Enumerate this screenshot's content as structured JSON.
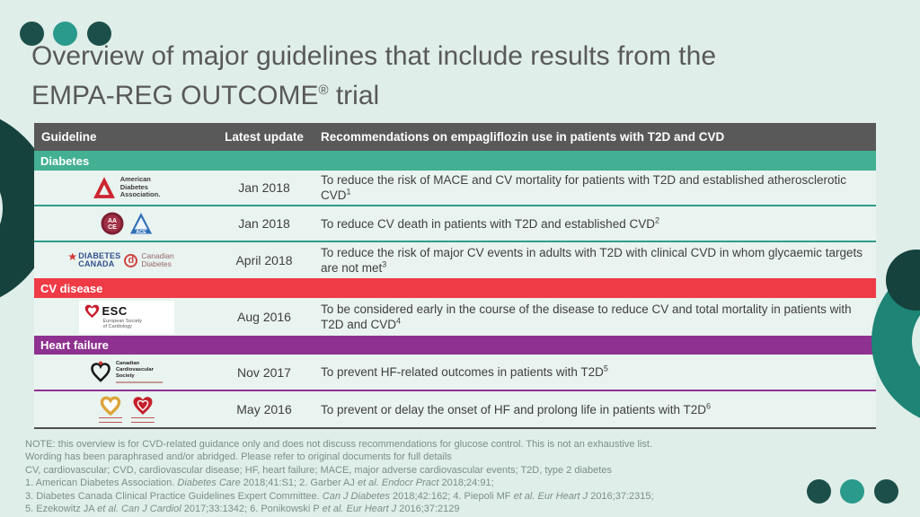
{
  "slide": {
    "title_line1": "Overview of major guidelines that include results from the",
    "title_line2": [
      {
        "t": "EMPA-REG OUTCOME"
      },
      {
        "t": "®",
        "sup": true
      },
      {
        "t": " trial"
      }
    ]
  },
  "colors": {
    "background": "#dfeee9",
    "accent_dark_teal": "#16423e",
    "accent_teal": "#2a9a8c",
    "header_bar": "#595959",
    "diabetes_bar": "#43b093",
    "cv_disease_bar": "#ee3b46",
    "heart_failure_bar": "#8e3190"
  },
  "table": {
    "header": {
      "guideline": "Guideline",
      "latest_update": "Latest update",
      "recommendations": "Recommendations on empagliflozin use in patients with T2D and CVD"
    },
    "sections": {
      "diabetes": "Diabetes",
      "cv": "CV disease",
      "hf": "Heart failure"
    },
    "rows": [
      {
        "org": "American Diabetes Association",
        "date": "Jan 2018",
        "rec": [
          {
            "t": "To reduce the risk of MACE and CV mortality for patients with T2D and established atherosclerotic CVD"
          },
          {
            "t": "1",
            "sup": true
          }
        ]
      },
      {
        "org": "AACE / ACE",
        "date": "Jan 2018",
        "rec": [
          {
            "t": "To reduce CV death in patients with T2D and established CVD"
          },
          {
            "t": "2",
            "sup": true
          }
        ]
      },
      {
        "org": "Diabetes Canada",
        "date": "April 2018",
        "rec": [
          {
            "t": "To reduce the risk of major CV events in adults with T2D with clinical CVD in whom glycaemic targets are not met"
          },
          {
            "t": "3",
            "sup": true
          }
        ]
      },
      {
        "org": "European Society of Cardiology",
        "date": "Aug 2016",
        "rec": [
          {
            "t": "To be considered early in the course of the disease to reduce CV and total mortality in patients with T2D and CVD"
          },
          {
            "t": "4",
            "sup": true
          }
        ]
      },
      {
        "org": "Canadian Cardiovascular Society",
        "date": "Nov 2017",
        "rec": [
          {
            "t": "To prevent HF-related outcomes in patients with T2D"
          },
          {
            "t": "5",
            "sup": true
          }
        ]
      },
      {
        "org": "Heart Failure societies",
        "date": "May 2016",
        "rec": [
          {
            "t": "To prevent or delay the onset of HF and prolong life in patients with T2D"
          },
          {
            "t": "6",
            "sup": true
          }
        ]
      }
    ]
  },
  "logos": {
    "ada": {
      "l1": "American",
      "l2": "Diabetes",
      "l3": "Association."
    },
    "aace": {
      "top": "AA",
      "bottom": "CE"
    },
    "ace": {
      "text": "ACE"
    },
    "diabetes_canada": {
      "l1": "DIABETES",
      "l2": "CANADA",
      "mark": "d",
      "r1": "Canadian",
      "r2": "Diabetes"
    },
    "esc": {
      "abbr": "ESC",
      "sub1": "European Society",
      "sub2": "of Cardiology"
    },
    "ccs": {
      "l1": "Canadian",
      "l2": "Cardiovascular",
      "l3": "Society"
    }
  },
  "notes": {
    "line1": "NOTE: this overview is for CVD-related guidance only and does not discuss recommendations for glucose control. This is not an exhaustive list.",
    "line2": "Wording has been paraphrased and/or abridged. Please refer to original documents for full details",
    "line3": "CV, cardiovascular; CVD, cardiovascular disease; HF, heart failure; MACE, major adverse cardiovascular events; T2D, type 2 diabetes",
    "refs": [
      [
        {
          "t": "1. American Diabetes Association. "
        },
        {
          "t": "Diabetes Care",
          "i": true
        },
        {
          "t": " 2018;41:S1; 2. Garber AJ "
        },
        {
          "t": "et al.",
          "i": true
        },
        {
          "t": " "
        },
        {
          "t": "Endocr Pract",
          "i": true
        },
        {
          "t": " 2018;24:91;"
        }
      ],
      [
        {
          "t": "3. Diabetes Canada Clinical Practice Guidelines Expert Committee. "
        },
        {
          "t": "Can J Diabetes",
          "i": true
        },
        {
          "t": " 2018;42:162; 4. Piepoli MF "
        },
        {
          "t": "et al.",
          "i": true
        },
        {
          "t": " "
        },
        {
          "t": "Eur Heart J",
          "i": true
        },
        {
          "t": " 2016;37:2315;"
        }
      ],
      [
        {
          "t": "5. Ezekowitz JA "
        },
        {
          "t": "et al.",
          "i": true
        },
        {
          "t": " "
        },
        {
          "t": "Can J Cardiol",
          "i": true
        },
        {
          "t": " 2017;33:1342; 6. Ponikowski P "
        },
        {
          "t": "et al.",
          "i": true
        },
        {
          "t": " "
        },
        {
          "t": "Eur Heart J",
          "i": true
        },
        {
          "t": " 2016;37:2129"
        }
      ]
    ]
  }
}
